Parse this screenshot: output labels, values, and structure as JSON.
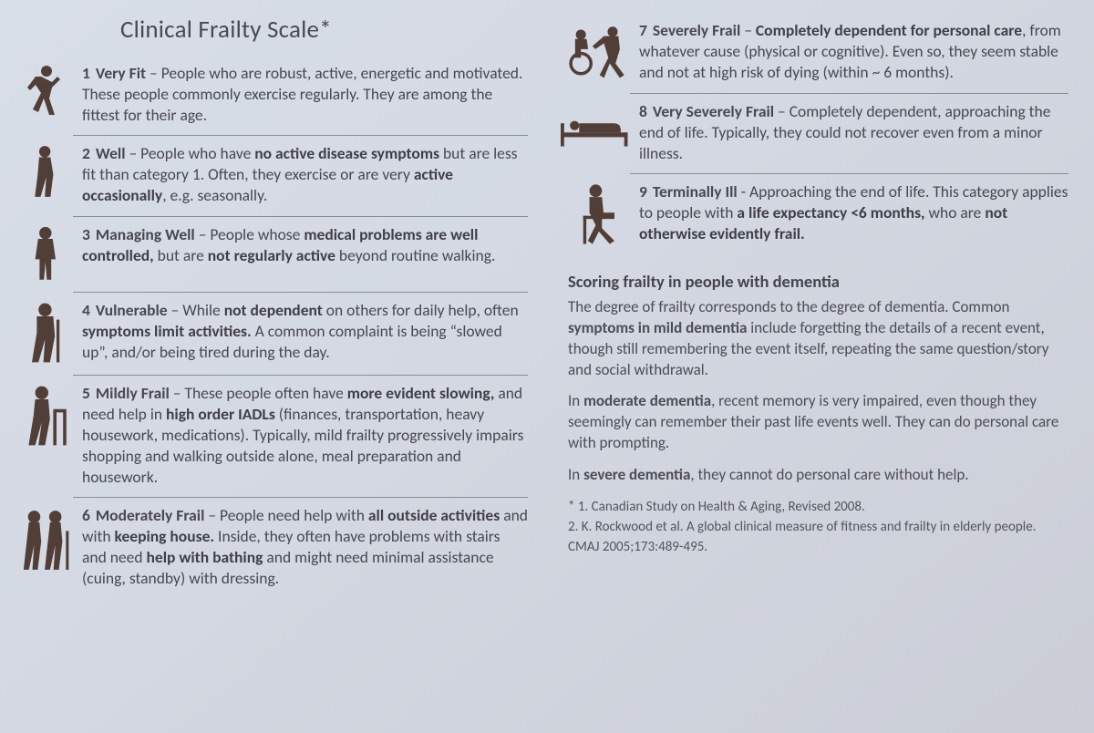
{
  "title": "Clinical Frailty Scale*",
  "colors": {
    "background_gradient": [
      "#d8dee8",
      "#cbced7"
    ],
    "text": "#47454f",
    "icon": "#513e37",
    "divider": "#8c8b93"
  },
  "left": [
    {
      "num": "1",
      "label": "Very Fit",
      "icon": "runner",
      "html": "People who are robust, active, energetic and motivated. These people commonly exercise regularly. They are among the fittest for their age."
    },
    {
      "num": "2",
      "label": "Well",
      "icon": "walker-plain",
      "html": "People who have <b>no active disease symptoms</b> but are less fit than category 1. Often, they exercise or are very <b>active occasionally</b>, e.g. seasonally."
    },
    {
      "num": "3",
      "label": "Managing Well",
      "icon": "standing",
      "html": "People whose <b>medical problems are well controlled,</b> but are <b>not regularly active</b> beyond routine walking."
    },
    {
      "num": "4",
      "label": "Vulnerable",
      "icon": "cane",
      "html": "While <b>not dependent</b> on others for daily help, often <b>symptoms limit activities.</b> A common complaint is being “slowed up”, and/or being tired during the day."
    },
    {
      "num": "5",
      "label": "Mildly Frail",
      "icon": "walker-frame",
      "html": "These people often have <b>more evident slowing,</b> and need help in <b>high order IADLs</b> (finances, transportation, heavy housework, medica­tions). Typically, mild frailty progressively impairs shopping and walking outside alone, meal preparation and housework."
    },
    {
      "num": "6",
      "label": "Moderately Frail",
      "icon": "assisted-walk",
      "html": "People need help with <b>all outside activities</b> and with <b>keeping house.</b> Inside, they often have problems with stairs and need <b>help with bathing</b> and might need minimal assistance (cuing, standby) with dressing."
    }
  ],
  "right": [
    {
      "num": "7",
      "label": "Severely Frail",
      "icon": "wheelchair",
      "html": "<b>Completely dependent for personal care</b>, from whatever cause (physical or cognitive). Even so, they seem stable and not at high risk of dying (within ~ 6 months)."
    },
    {
      "num": "8",
      "label": "Very Severely Frail",
      "icon": "bed",
      "html": "Completely dependent, approaching the end of life. Typically, they could not recover even from a minor illness."
    },
    {
      "num": "9",
      "label": "Terminally Ill",
      "icon": "seated",
      "html": "Approaching the end of life. This category applies to people with <b>a life expectancy &lt;6 months,</b> who are <b>not otherwise evidently frail.</b>"
    }
  ],
  "dementia": {
    "heading": "Scoring frailty in people with dementia",
    "p1": "The degree of frailty corresponds to the degree of dementia. Common <b>symptoms in mild dementia</b> include forgetting the details of a recent event, though still remembering the event itself, repeating the same question/story and social withdrawal.",
    "p2": "In <b>moderate dementia</b>, recent memory is very impaired, even though they seemingly can remember their past life events well. They can do personal care with prompting.",
    "p3": "In <b>severe dementia</b>, they cannot do personal care without help."
  },
  "refs": {
    "r1": "* 1. Canadian Study on Health & Aging, Revised 2008.",
    "r2": "2. K. Rockwood et al. A global clinical measure of fitness and frailty in elderly people. CMAJ 2005;173:489-495."
  }
}
